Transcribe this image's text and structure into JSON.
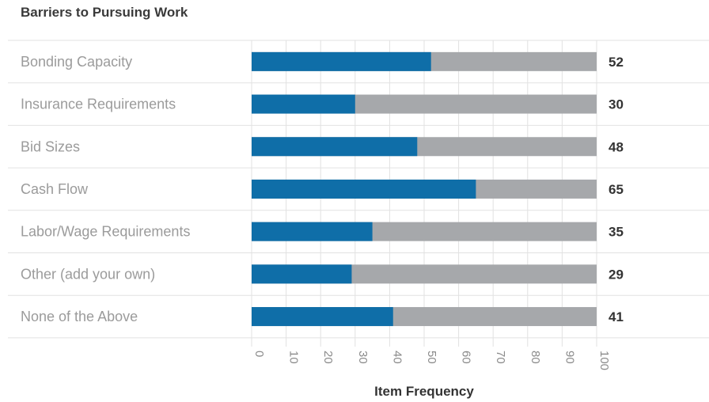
{
  "chart_data": {
    "type": "bar",
    "orientation": "horizontal",
    "stacked_to_total": 100,
    "title": "Barriers to Pursuing Work",
    "xlabel": "Item Frequency",
    "ylabel": "",
    "xlim": [
      0,
      100
    ],
    "xticks": [
      "0",
      "10",
      "20",
      "30",
      "40",
      "50",
      "60",
      "70",
      "80",
      "90",
      "100"
    ],
    "categories": [
      "Bonding Capacity",
      "Insurance Requirements",
      "Bid Sizes",
      "Cash Flow",
      "Labor/Wage Requirements",
      "Other (add your own)",
      "None of the Above"
    ],
    "values": [
      52,
      30,
      48,
      65,
      35,
      29,
      41
    ],
    "value_labels": [
      "52",
      "30",
      "48",
      "65",
      "35",
      "29",
      "41"
    ],
    "grid": true,
    "colors": {
      "value": "#0f6ea8",
      "remainder": "#a6a8ab",
      "grid": "#e2e2e2",
      "category_text": "#9b9b9b"
    }
  }
}
